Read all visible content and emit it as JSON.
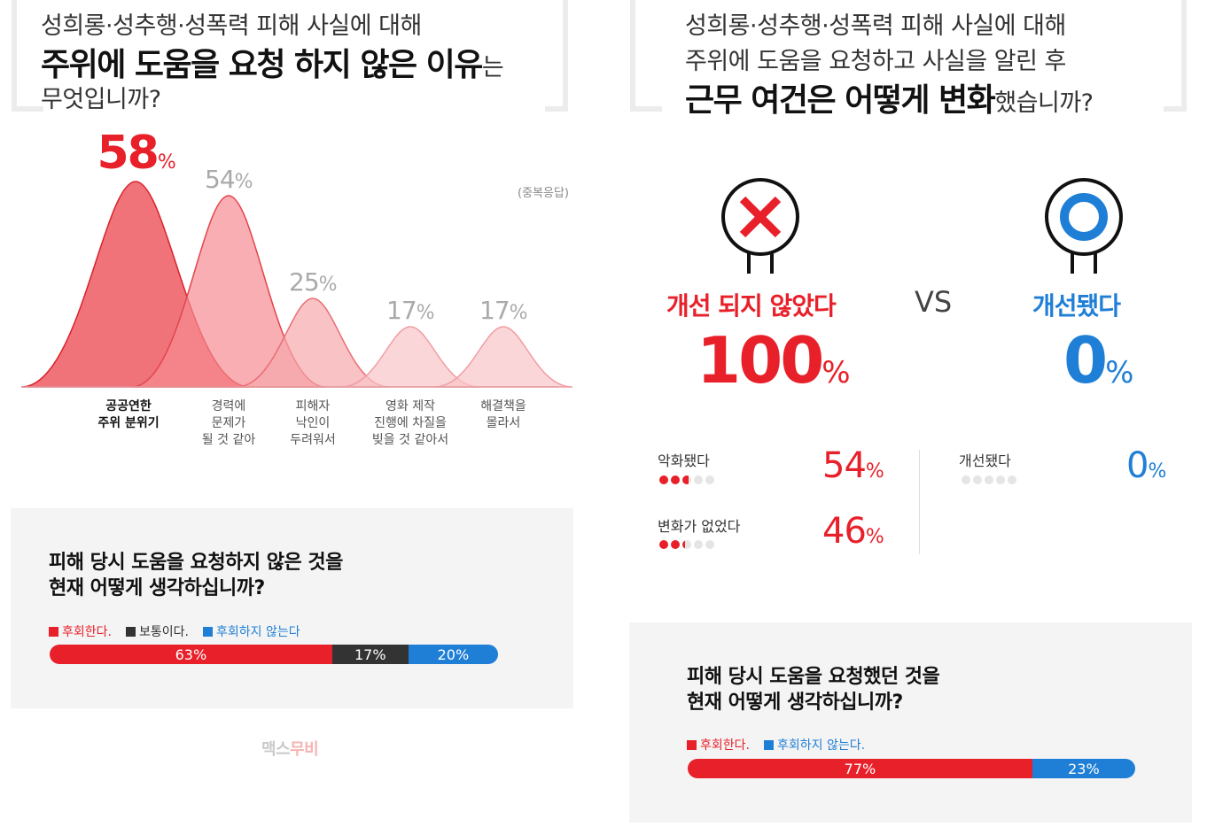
{
  "colors": {
    "red": "#e8202a",
    "blue": "#1f7fd6",
    "dark": "#333333",
    "gray": "#e5e5e5"
  },
  "left": {
    "question": {
      "line1": "성희롱·성추행·성폭력 피해 사실에 대해",
      "bold": "주위에 도움을 요청 하지 않은 이유",
      "bold_tail": "는",
      "line3": "무엇입니까?"
    },
    "multi_note": "(중복응답)"
  },
  "chart_data": [
    {
      "type": "area",
      "categories": [
        "공공연한\n주위 분위기",
        "경력에\n문제가\n될 것 같아",
        "피해자\n낙인이\n두려워서",
        "영화 제작\n진행에 차질을\n빚을 것 같아서",
        "해결책을\n몰라서"
      ],
      "values": [
        58,
        54,
        25,
        17,
        17
      ],
      "value_labels": [
        "58",
        "54",
        "25",
        "17",
        "17"
      ],
      "unit": "%",
      "highlight_index": 0
    },
    {
      "type": "bar",
      "title": "피해 당시 도움을 요청하지 않은 것을\n현재 어떻게 생각하십니까?",
      "series": [
        {
          "name": "후회한다.",
          "value": 63,
          "label": "63%",
          "color": "#e8202a"
        },
        {
          "name": "보통이다.",
          "value": 17,
          "label": "17%",
          "color": "#333333"
        },
        {
          "name": "후회하지 않는다",
          "value": 20,
          "label": "20%",
          "color": "#1f7fd6"
        }
      ]
    },
    {
      "type": "bar",
      "title": "피해 당시 도움을 요청했던 것을\n현재 어떻게 생각하십니까?",
      "series": [
        {
          "name": "후회한다.",
          "value": 77,
          "label": "77%",
          "color": "#e8202a"
        },
        {
          "name": "후회하지 않는다.",
          "value": 23,
          "label": "23%",
          "color": "#1f7fd6"
        }
      ]
    }
  ],
  "brand": {
    "part1": "맥스",
    "part2": "무비"
  },
  "right": {
    "question": {
      "line1": "성희롱·성추행·성폭력 피해 사실에 대해",
      "line2": "주위에 도움을 요청하고 사실을 알린 후",
      "bold": "근무 여건은 어떻게 변화",
      "bold_tail": "했습니까?"
    },
    "vs": "VS",
    "not_improved": {
      "label": "개선 되지 않았다",
      "value": "100",
      "unit": "%",
      "icon": "x-icon"
    },
    "improved": {
      "label": "개선됐다",
      "value": "0",
      "unit": "%",
      "icon": "circle-icon"
    },
    "breakdown": [
      {
        "label": "악화됐다",
        "value": "54",
        "unit": "%",
        "fraction": 0.54,
        "color": "#e8202a"
      },
      {
        "label": "변화가 없었다",
        "value": "46",
        "unit": "%",
        "fraction": 0.46,
        "color": "#e8202a"
      },
      {
        "label": "개선됐다",
        "value": "0",
        "unit": "%",
        "fraction": 0,
        "color": "#1f7fd6"
      }
    ]
  }
}
